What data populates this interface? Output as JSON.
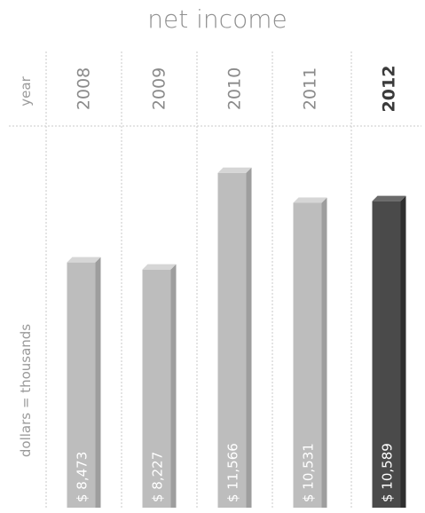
{
  "chart_data": {
    "type": "bar",
    "title": "net income",
    "xlabel": "year",
    "ylabel": "dollars = thousands",
    "categories": [
      "2008",
      "2009",
      "2010",
      "2011",
      "2012"
    ],
    "values": [
      8473,
      8227,
      11566,
      10531,
      10589
    ],
    "value_labels": [
      "$ 8,473",
      "$ 8,227",
      "$ 11,566",
      "$ 10,531",
      "$ 10,589"
    ],
    "highlight_category": "2012",
    "ylim": [
      0,
      13000
    ],
    "grid": true,
    "colors": {
      "bar": "#bdbdbd",
      "bar_side": "#9e9e9e",
      "bar_top": "#d6d6d6",
      "highlight_bar": "#4a4a4a",
      "highlight_side": "#2f2f2f",
      "highlight_top": "#6a6a6a",
      "grid": "#c8c8c8",
      "text": "#8f8f8f"
    }
  }
}
